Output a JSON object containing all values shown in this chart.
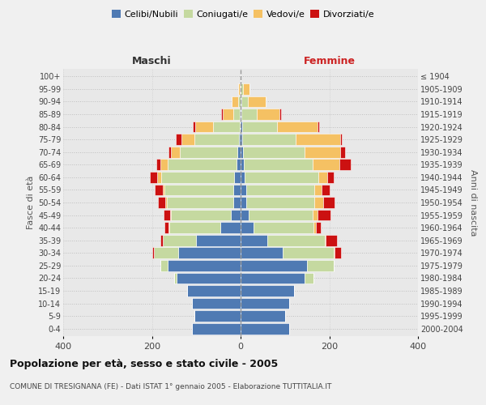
{
  "age_groups": [
    "0-4",
    "5-9",
    "10-14",
    "15-19",
    "20-24",
    "25-29",
    "30-34",
    "35-39",
    "40-44",
    "45-49",
    "50-54",
    "55-59",
    "60-64",
    "65-69",
    "70-74",
    "75-79",
    "80-84",
    "85-89",
    "90-94",
    "95-99",
    "100+"
  ],
  "birth_years": [
    "2000-2004",
    "1995-1999",
    "1990-1994",
    "1985-1989",
    "1980-1984",
    "1975-1979",
    "1970-1974",
    "1965-1969",
    "1960-1964",
    "1955-1959",
    "1950-1954",
    "1945-1949",
    "1940-1944",
    "1935-1939",
    "1930-1934",
    "1925-1929",
    "1920-1924",
    "1915-1919",
    "1910-1914",
    "1905-1909",
    "≤ 1904"
  ],
  "colors": {
    "celibi": "#4f7ab3",
    "coniugati": "#c5d9a0",
    "vedovi": "#f5c163",
    "divorziati": "#cc1111"
  },
  "males": {
    "celibi": [
      110,
      105,
      110,
      120,
      145,
      165,
      140,
      100,
      45,
      22,
      16,
      16,
      14,
      10,
      7,
      4,
      2,
      1,
      0,
      0,
      0
    ],
    "coniugati": [
      0,
      0,
      0,
      0,
      5,
      15,
      55,
      75,
      115,
      135,
      150,
      155,
      165,
      155,
      130,
      100,
      60,
      15,
      5,
      2,
      0
    ],
    "vedovi": [
      0,
      0,
      0,
      0,
      0,
      0,
      0,
      0,
      2,
      2,
      3,
      5,
      10,
      15,
      20,
      30,
      40,
      25,
      15,
      3,
      0
    ],
    "divorziati": [
      0,
      0,
      0,
      0,
      0,
      0,
      5,
      5,
      10,
      15,
      18,
      18,
      15,
      10,
      5,
      12,
      5,
      3,
      0,
      0,
      0
    ]
  },
  "females": {
    "nubili": [
      110,
      100,
      110,
      120,
      145,
      150,
      95,
      60,
      30,
      18,
      12,
      12,
      10,
      8,
      5,
      4,
      3,
      2,
      2,
      0,
      0
    ],
    "coniugate": [
      0,
      0,
      0,
      0,
      20,
      60,
      115,
      130,
      135,
      145,
      155,
      155,
      165,
      155,
      140,
      120,
      80,
      35,
      15,
      5,
      0
    ],
    "vedove": [
      0,
      0,
      0,
      0,
      0,
      0,
      2,
      2,
      5,
      10,
      20,
      15,
      20,
      60,
      80,
      100,
      90,
      50,
      40,
      15,
      0
    ],
    "divorziate": [
      0,
      0,
      0,
      0,
      0,
      0,
      15,
      25,
      10,
      30,
      25,
      18,
      15,
      25,
      10,
      5,
      5,
      5,
      0,
      0,
      0
    ]
  },
  "title": "Popolazione per età, sesso e stato civile - 2005",
  "subtitle": "COMUNE DI TRESIGNANA (FE) - Dati ISTAT 1° gennaio 2005 - Elaborazione TUTTITALIA.IT",
  "xlabel_left": "Maschi",
  "xlabel_right": "Femmine",
  "ylabel_left": "Fasce di età",
  "ylabel_right": "Anni di nascita",
  "xlim": 400,
  "legend_labels": [
    "Celibi/Nubili",
    "Coniugati/e",
    "Vedovi/e",
    "Divorziati/e"
  ],
  "bg_color": "#f0f0f0",
  "plot_bg": "#e8e8e8",
  "grid_color": "#bbbbbb"
}
